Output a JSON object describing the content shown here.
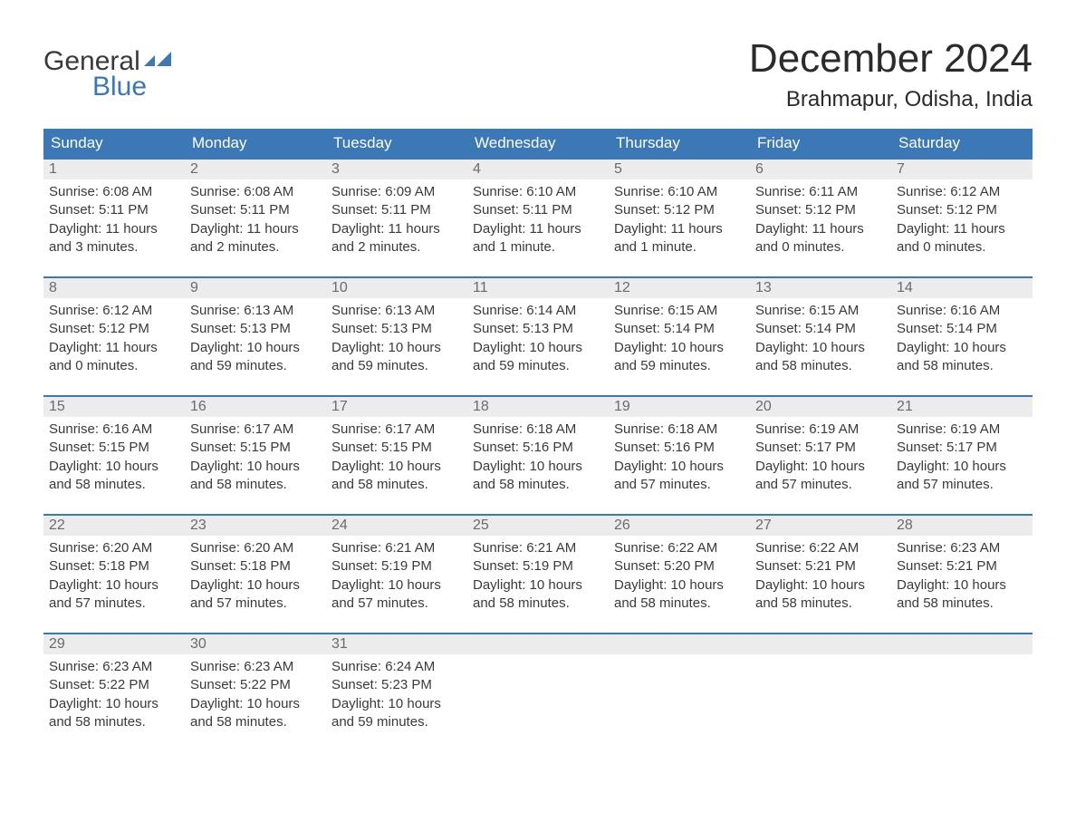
{
  "logo": {
    "general": "General",
    "blue": "Blue",
    "icon_color": "#3b78b5"
  },
  "header": {
    "month_title": "December 2024",
    "location": "Brahmapur, Odisha, India"
  },
  "colors": {
    "header_bar": "#3b78b5",
    "week_border": "#3b78b5",
    "daynum_bg": "#ececec",
    "daynum_fg": "#6b6b6b",
    "text": "#3a3a3a",
    "dow_text": "#ffffff",
    "background": "#ffffff"
  },
  "fonts": {
    "title_size_pt": 33,
    "location_size_pt": 18,
    "dow_size_pt": 13,
    "body_size_pt": 11
  },
  "dow": [
    "Sunday",
    "Monday",
    "Tuesday",
    "Wednesday",
    "Thursday",
    "Friday",
    "Saturday"
  ],
  "days": [
    {
      "n": "1",
      "sr": "Sunrise: 6:08 AM",
      "ss": "Sunset: 5:11 PM",
      "d1": "Daylight: 11 hours",
      "d2": "and 3 minutes."
    },
    {
      "n": "2",
      "sr": "Sunrise: 6:08 AM",
      "ss": "Sunset: 5:11 PM",
      "d1": "Daylight: 11 hours",
      "d2": "and 2 minutes."
    },
    {
      "n": "3",
      "sr": "Sunrise: 6:09 AM",
      "ss": "Sunset: 5:11 PM",
      "d1": "Daylight: 11 hours",
      "d2": "and 2 minutes."
    },
    {
      "n": "4",
      "sr": "Sunrise: 6:10 AM",
      "ss": "Sunset: 5:11 PM",
      "d1": "Daylight: 11 hours",
      "d2": "and 1 minute."
    },
    {
      "n": "5",
      "sr": "Sunrise: 6:10 AM",
      "ss": "Sunset: 5:12 PM",
      "d1": "Daylight: 11 hours",
      "d2": "and 1 minute."
    },
    {
      "n": "6",
      "sr": "Sunrise: 6:11 AM",
      "ss": "Sunset: 5:12 PM",
      "d1": "Daylight: 11 hours",
      "d2": "and 0 minutes."
    },
    {
      "n": "7",
      "sr": "Sunrise: 6:12 AM",
      "ss": "Sunset: 5:12 PM",
      "d1": "Daylight: 11 hours",
      "d2": "and 0 minutes."
    },
    {
      "n": "8",
      "sr": "Sunrise: 6:12 AM",
      "ss": "Sunset: 5:12 PM",
      "d1": "Daylight: 11 hours",
      "d2": "and 0 minutes."
    },
    {
      "n": "9",
      "sr": "Sunrise: 6:13 AM",
      "ss": "Sunset: 5:13 PM",
      "d1": "Daylight: 10 hours",
      "d2": "and 59 minutes."
    },
    {
      "n": "10",
      "sr": "Sunrise: 6:13 AM",
      "ss": "Sunset: 5:13 PM",
      "d1": "Daylight: 10 hours",
      "d2": "and 59 minutes."
    },
    {
      "n": "11",
      "sr": "Sunrise: 6:14 AM",
      "ss": "Sunset: 5:13 PM",
      "d1": "Daylight: 10 hours",
      "d2": "and 59 minutes."
    },
    {
      "n": "12",
      "sr": "Sunrise: 6:15 AM",
      "ss": "Sunset: 5:14 PM",
      "d1": "Daylight: 10 hours",
      "d2": "and 59 minutes."
    },
    {
      "n": "13",
      "sr": "Sunrise: 6:15 AM",
      "ss": "Sunset: 5:14 PM",
      "d1": "Daylight: 10 hours",
      "d2": "and 58 minutes."
    },
    {
      "n": "14",
      "sr": "Sunrise: 6:16 AM",
      "ss": "Sunset: 5:14 PM",
      "d1": "Daylight: 10 hours",
      "d2": "and 58 minutes."
    },
    {
      "n": "15",
      "sr": "Sunrise: 6:16 AM",
      "ss": "Sunset: 5:15 PM",
      "d1": "Daylight: 10 hours",
      "d2": "and 58 minutes."
    },
    {
      "n": "16",
      "sr": "Sunrise: 6:17 AM",
      "ss": "Sunset: 5:15 PM",
      "d1": "Daylight: 10 hours",
      "d2": "and 58 minutes."
    },
    {
      "n": "17",
      "sr": "Sunrise: 6:17 AM",
      "ss": "Sunset: 5:15 PM",
      "d1": "Daylight: 10 hours",
      "d2": "and 58 minutes."
    },
    {
      "n": "18",
      "sr": "Sunrise: 6:18 AM",
      "ss": "Sunset: 5:16 PM",
      "d1": "Daylight: 10 hours",
      "d2": "and 58 minutes."
    },
    {
      "n": "19",
      "sr": "Sunrise: 6:18 AM",
      "ss": "Sunset: 5:16 PM",
      "d1": "Daylight: 10 hours",
      "d2": "and 57 minutes."
    },
    {
      "n": "20",
      "sr": "Sunrise: 6:19 AM",
      "ss": "Sunset: 5:17 PM",
      "d1": "Daylight: 10 hours",
      "d2": "and 57 minutes."
    },
    {
      "n": "21",
      "sr": "Sunrise: 6:19 AM",
      "ss": "Sunset: 5:17 PM",
      "d1": "Daylight: 10 hours",
      "d2": "and 57 minutes."
    },
    {
      "n": "22",
      "sr": "Sunrise: 6:20 AM",
      "ss": "Sunset: 5:18 PM",
      "d1": "Daylight: 10 hours",
      "d2": "and 57 minutes."
    },
    {
      "n": "23",
      "sr": "Sunrise: 6:20 AM",
      "ss": "Sunset: 5:18 PM",
      "d1": "Daylight: 10 hours",
      "d2": "and 57 minutes."
    },
    {
      "n": "24",
      "sr": "Sunrise: 6:21 AM",
      "ss": "Sunset: 5:19 PM",
      "d1": "Daylight: 10 hours",
      "d2": "and 57 minutes."
    },
    {
      "n": "25",
      "sr": "Sunrise: 6:21 AM",
      "ss": "Sunset: 5:19 PM",
      "d1": "Daylight: 10 hours",
      "d2": "and 58 minutes."
    },
    {
      "n": "26",
      "sr": "Sunrise: 6:22 AM",
      "ss": "Sunset: 5:20 PM",
      "d1": "Daylight: 10 hours",
      "d2": "and 58 minutes."
    },
    {
      "n": "27",
      "sr": "Sunrise: 6:22 AM",
      "ss": "Sunset: 5:21 PM",
      "d1": "Daylight: 10 hours",
      "d2": "and 58 minutes."
    },
    {
      "n": "28",
      "sr": "Sunrise: 6:23 AM",
      "ss": "Sunset: 5:21 PM",
      "d1": "Daylight: 10 hours",
      "d2": "and 58 minutes."
    },
    {
      "n": "29",
      "sr": "Sunrise: 6:23 AM",
      "ss": "Sunset: 5:22 PM",
      "d1": "Daylight: 10 hours",
      "d2": "and 58 minutes."
    },
    {
      "n": "30",
      "sr": "Sunrise: 6:23 AM",
      "ss": "Sunset: 5:22 PM",
      "d1": "Daylight: 10 hours",
      "d2": "and 58 minutes."
    },
    {
      "n": "31",
      "sr": "Sunrise: 6:24 AM",
      "ss": "Sunset: 5:23 PM",
      "d1": "Daylight: 10 hours",
      "d2": "and 59 minutes."
    }
  ]
}
